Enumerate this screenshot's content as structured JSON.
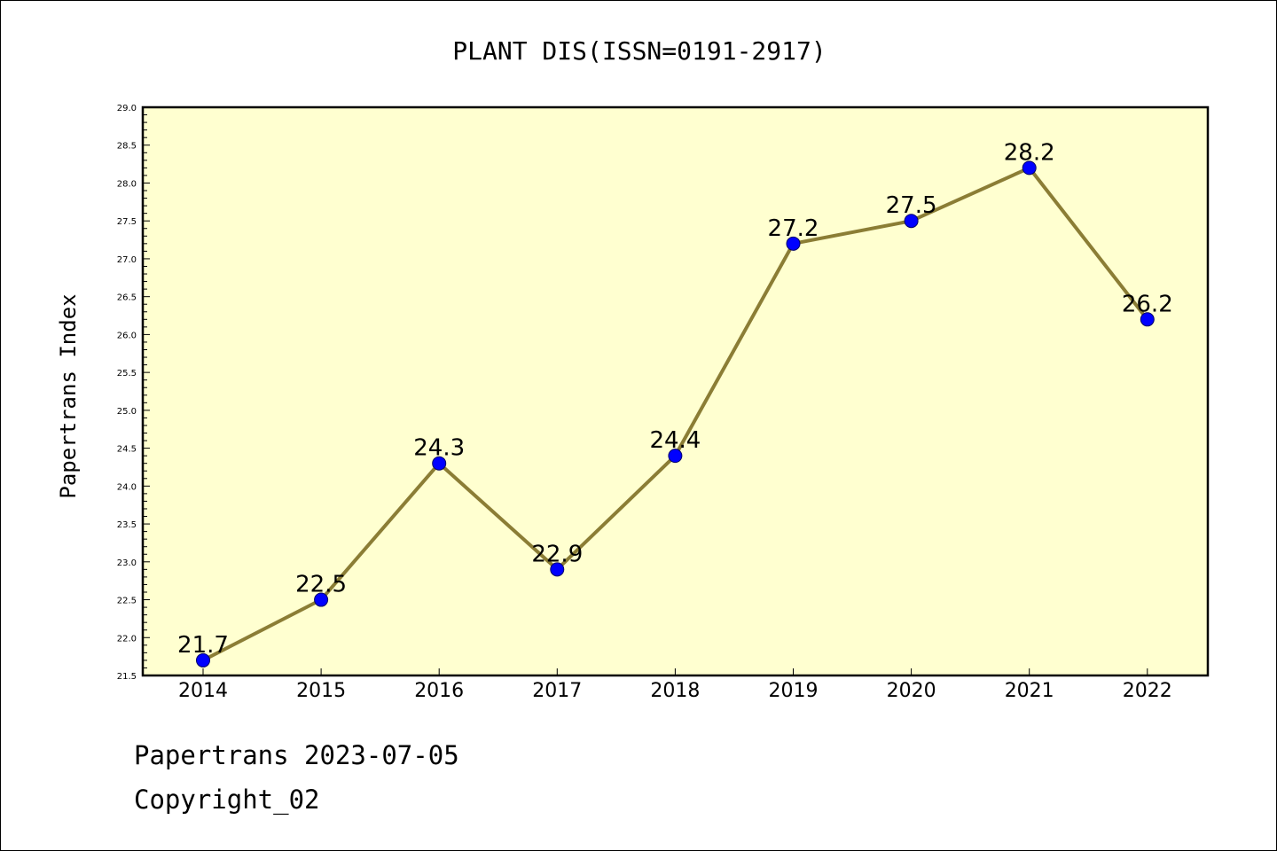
{
  "chart_data": {
    "type": "line",
    "title": "PLANT DIS(ISSN=0191-2917)",
    "ylabel": "Papertrans Index",
    "xlabel": "",
    "categories": [
      "2014",
      "2015",
      "2016",
      "2017",
      "2018",
      "2019",
      "2020",
      "2021",
      "2022"
    ],
    "series": [
      {
        "values": [
          21.7,
          22.5,
          24.3,
          22.9,
          24.4,
          27.2,
          27.5,
          28.2,
          26.2
        ],
        "line_color": "#8b7d35",
        "marker_color": "#0000ff"
      }
    ],
    "data_labels": [
      "21.7",
      "22.5",
      "24.3",
      "22.9",
      "24.4",
      "27.2",
      "27.5",
      "28.2",
      "26.2"
    ],
    "ylim": [
      21.5,
      29.0
    ],
    "ytick_labels": [
      "21.5",
      "22.0",
      "22.5",
      "23.0",
      "23.5",
      "24.0",
      "24.5",
      "25.0",
      "25.5",
      "26.0",
      "26.5",
      "27.0",
      "27.5",
      "28.0",
      "28.5",
      "29.0"
    ],
    "plot_background": "#ffffd0",
    "grid": false,
    "legend": "none"
  },
  "footer": {
    "date_text": "Papertrans 2023-07-05",
    "copyright_text": "Copyright_02"
  }
}
